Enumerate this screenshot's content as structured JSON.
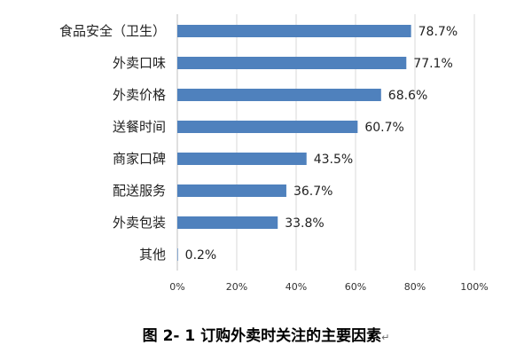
{
  "caption": "图 2- 1 订购外卖时关注的主要因素",
  "caption_mark": "↵",
  "chart_data": {
    "type": "bar",
    "orientation": "horizontal",
    "categories": [
      "食品安全（卫生）",
      "外卖口味",
      "外卖价格",
      "送餐时间",
      "商家口碑",
      "配送服务",
      "外卖包装",
      "其他"
    ],
    "values": [
      78.7,
      77.1,
      68.6,
      60.7,
      43.5,
      36.7,
      33.8,
      0.2
    ],
    "value_labels": [
      "78.7%",
      "77.1%",
      "68.6%",
      "60.7%",
      "43.5%",
      "36.7%",
      "33.8%",
      "0.2%"
    ],
    "xlim": [
      0,
      100
    ],
    "ticks": [
      0,
      20,
      40,
      60,
      80,
      100
    ],
    "tick_labels": [
      "0%",
      "20%",
      "40%",
      "60%",
      "80%",
      "100%"
    ],
    "bar_color": "#4F81BD",
    "grid": true,
    "legend": "none"
  }
}
